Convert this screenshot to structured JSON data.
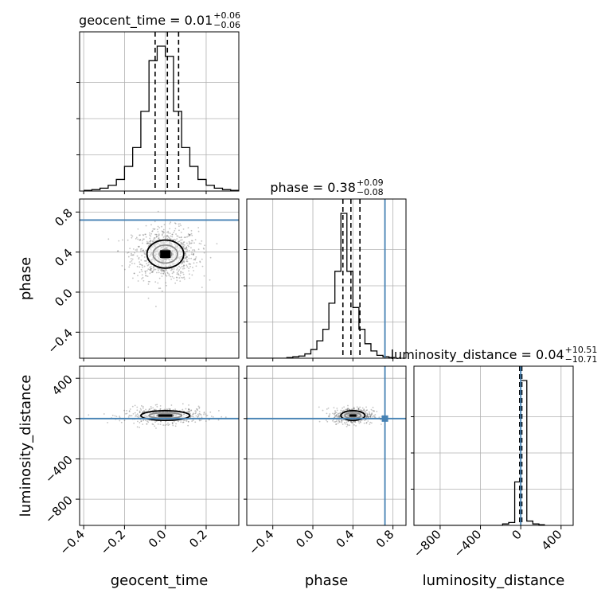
{
  "chart_data": {
    "type": "corner",
    "parameters": [
      "geocent_time",
      "phase",
      "luminosity_distance"
    ],
    "axis_labels": {
      "geocent_time": "geocent_time",
      "phase": "phase",
      "luminosity_distance": "luminosity_distance"
    },
    "ranges": {
      "geocent_time": [
        -0.42,
        0.36
      ],
      "phase": [
        -0.66,
        0.93
      ],
      "luminosity_distance": [
        -1060,
        520
      ]
    },
    "ticks": {
      "geocent_time": [
        -0.4,
        -0.2,
        0.0,
        0.2
      ],
      "phase": [
        -0.4,
        0.0,
        0.4,
        0.8
      ],
      "luminosity_distance": [
        -800,
        -400,
        0,
        400
      ]
    },
    "tick_labels": {
      "geocent_time": [
        "−0.4",
        "−0.2",
        "0.0",
        "0.2"
      ],
      "phase": [
        "−0.4",
        "0.0",
        "0.4",
        "0.8"
      ],
      "luminosity_distance": [
        "−800",
        "−400",
        "0",
        "400"
      ]
    },
    "titles": [
      {
        "param": "geocent_time",
        "prefix": "geocent_time = ",
        "median": "0.01",
        "plus": "+0.06",
        "minus": "−0.06"
      },
      {
        "param": "phase",
        "prefix": "phase = ",
        "median": "0.38",
        "plus": "+0.09",
        "minus": "−0.08"
      },
      {
        "param": "luminosity_distance",
        "prefix": "luminosity_distance = ",
        "median": "0.04",
        "plus": "+10.51",
        "minus": "−10.71"
      }
    ],
    "quantiles": {
      "geocent_time": [
        -0.05,
        0.01,
        0.065
      ],
      "phase": [
        0.3,
        0.38,
        0.47
      ],
      "luminosity_distance": [
        -10.67,
        0.04,
        10.55
      ]
    },
    "truths": {
      "phase": 0.72,
      "luminosity_distance": 0
    },
    "histograms": {
      "geocent_time": {
        "edges": [
          -0.4,
          -0.36,
          -0.32,
          -0.28,
          -0.24,
          -0.2,
          -0.16,
          -0.12,
          -0.08,
          -0.04,
          0.0,
          0.04,
          0.08,
          0.12,
          0.16,
          0.2,
          0.24,
          0.28,
          0.32,
          0.36
        ],
        "counts": [
          0.005,
          0.01,
          0.02,
          0.04,
          0.08,
          0.17,
          0.3,
          0.55,
          0.9,
          1.0,
          0.93,
          0.55,
          0.3,
          0.17,
          0.08,
          0.04,
          0.02,
          0.01,
          0.005
        ]
      },
      "phase": {
        "edges": [
          -0.66,
          -0.26,
          -0.2,
          -0.14,
          -0.08,
          -0.02,
          0.04,
          0.1,
          0.16,
          0.22,
          0.28,
          0.34,
          0.4,
          0.46,
          0.52,
          0.58,
          0.64,
          0.7,
          0.76,
          0.82
        ],
        "counts": [
          0,
          0.005,
          0.01,
          0.015,
          0.03,
          0.06,
          0.12,
          0.2,
          0.38,
          0.6,
          1.0,
          0.6,
          0.35,
          0.2,
          0.1,
          0.05,
          0.02,
          0.01,
          0.005
        ]
      },
      "luminosity_distance": {
        "edges": [
          -1060,
          -180,
          -120,
          -60,
          0,
          60,
          120,
          180,
          240
        ],
        "counts": [
          0,
          0.01,
          0.02,
          0.3,
          1.0,
          0.03,
          0.01,
          0.005
        ]
      }
    },
    "pairs": [
      {
        "x": "geocent_time",
        "y": "phase",
        "center": [
          0.0,
          0.38
        ],
        "spread": [
          0.08,
          0.13
        ],
        "n_points": 900,
        "contours": [
          [
            0.03,
            0.045
          ],
          [
            0.06,
            0.09
          ],
          [
            0.09,
            0.14
          ]
        ]
      },
      {
        "x": "geocent_time",
        "y": "luminosity_distance",
        "center": [
          0.0,
          30
        ],
        "spread": [
          0.1,
          40
        ],
        "n_points": 500,
        "contours": [
          [
            0.04,
            14
          ],
          [
            0.08,
            28
          ],
          [
            0.12,
            48
          ]
        ]
      },
      {
        "x": "phase",
        "y": "luminosity_distance",
        "center": [
          0.4,
          30
        ],
        "spread": [
          0.1,
          40
        ],
        "n_points": 500,
        "contours": [
          [
            0.04,
            14
          ],
          [
            0.08,
            28
          ],
          [
            0.12,
            48
          ]
        ]
      }
    ],
    "truth_color": "#4682b4",
    "grid": true
  }
}
